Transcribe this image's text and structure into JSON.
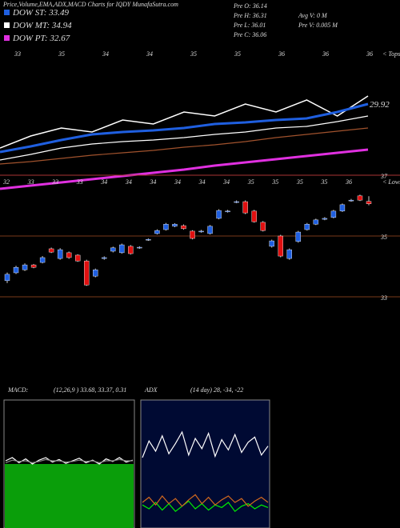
{
  "title": "Price,Volume,EMA,ADX,MACD Charts for IQDY MunafaSutra.com",
  "legend": [
    {
      "label": "DOW ST: 33.49",
      "color": "#1f5fe0"
    },
    {
      "label": "DOW MT: 34.94",
      "color": "#ffffff"
    },
    {
      "label": "DOW PT: 32.67",
      "color": "#e030e0"
    }
  ],
  "info": {
    "left": [
      "Pre  O: 36.14",
      "Pre  H: 36.31",
      "Pre  L: 36.01",
      "Pre  C: 36.06"
    ],
    "right": [
      "Avg  V: 0  M",
      "Pre  V: 0.005 M"
    ]
  },
  "chart_data": [
    {
      "type": "line",
      "ylim": [
        25,
        34
      ],
      "last_label": "29.92",
      "series": [
        {
          "color": "#ffffff",
          "values": [
            27.75,
            28.5,
            29.0,
            28.75,
            29.5,
            29.25,
            30.0,
            29.75,
            30.5,
            30.0,
            30.75,
            29.75,
            31.0
          ]
        },
        {
          "color": "#ffffff",
          "values": [
            27.0,
            27.35,
            27.75,
            28.0,
            28.15,
            28.25,
            28.4,
            28.6,
            28.75,
            29.0,
            29.1,
            29.4,
            29.75
          ]
        },
        {
          "color": "#1f5fe0",
          "values": [
            27.5,
            27.85,
            28.25,
            28.6,
            28.75,
            28.85,
            29.0,
            29.25,
            29.35,
            29.5,
            29.6,
            30.0,
            30.5
          ]
        },
        {
          "color": "#a0522d",
          "values": [
            26.75,
            26.9,
            27.1,
            27.3,
            27.45,
            27.6,
            27.8,
            27.95,
            28.15,
            28.4,
            28.6,
            28.8,
            29.0
          ]
        },
        {
          "color": "#e030e0",
          "values": [
            25.2,
            25.4,
            25.6,
            25.8,
            26.0,
            26.2,
            26.4,
            26.65,
            26.85,
            27.05,
            27.25,
            27.45,
            27.65
          ]
        }
      ]
    },
    {
      "type": "candlestick",
      "ylim": [
        32,
        38
      ],
      "yticks": [
        33,
        35,
        37
      ],
      "up_color": "#1f5fe0",
      "down_color": "#e01010",
      "open": [
        33.53,
        33.79,
        33.89,
        34.05,
        34.13,
        34.58,
        34.26,
        34.45,
        34.37,
        34.18,
        33.68,
        34.26,
        34.5,
        34.45,
        34.66,
        34.61,
        34.87,
        35.08,
        35.21,
        35.32,
        35.34,
        35.16,
        35.14,
        35.08,
        35.58,
        35.8,
        36.11,
        36.13,
        35.82,
        35.45,
        34.66,
        35.0,
        34.26,
        34.82,
        35.21,
        35.39,
        35.55,
        35.61,
        35.82,
        36.16,
        36.32,
        36.14
      ],
      "high": [
        33.8,
        34.02,
        34.1,
        34.08,
        34.34,
        34.62,
        34.6,
        34.49,
        34.4,
        34.22,
        33.93,
        34.33,
        34.65,
        34.75,
        34.7,
        34.66,
        34.92,
        35.22,
        35.43,
        35.42,
        35.38,
        35.19,
        35.2,
        35.36,
        35.88,
        35.86,
        36.17,
        36.17,
        35.86,
        35.49,
        34.88,
        35.04,
        34.59,
        35.17,
        35.43,
        35.57,
        35.62,
        35.86,
        36.07,
        36.22,
        36.36,
        36.31
      ],
      "low": [
        33.45,
        33.75,
        33.85,
        33.94,
        34.1,
        34.44,
        34.22,
        34.25,
        34.15,
        33.36,
        33.64,
        34.22,
        34.46,
        34.42,
        34.39,
        34.58,
        34.84,
        35.05,
        35.18,
        35.29,
        35.21,
        34.89,
        35.11,
        35.05,
        35.55,
        35.77,
        36.08,
        35.72,
        35.44,
        35.15,
        34.62,
        34.3,
        34.22,
        34.78,
        35.18,
        35.36,
        35.52,
        35.58,
        35.79,
        36.13,
        36.15,
        36.01
      ],
      "close": [
        33.74,
        33.97,
        34.05,
        33.97,
        34.29,
        34.47,
        34.55,
        34.29,
        34.18,
        33.39,
        33.89,
        34.29,
        34.61,
        34.71,
        34.42,
        34.63,
        34.89,
        35.18,
        35.39,
        35.39,
        35.24,
        34.92,
        35.16,
        35.32,
        35.84,
        35.82,
        36.13,
        35.76,
        35.47,
        35.18,
        34.84,
        34.34,
        34.55,
        35.13,
        35.39,
        35.53,
        35.58,
        35.82,
        36.03,
        36.18,
        36.18,
        36.06
      ],
      "top_labels": [
        "33",
        "35",
        "34",
        "34",
        "35",
        "35",
        "36",
        "36",
        "36"
      ],
      "top_marker": "< Tops",
      "low_labels": [
        "32",
        "33",
        "33",
        "33",
        "34",
        "34",
        "34",
        "34",
        "34",
        "34",
        "35",
        "35",
        "35",
        "35",
        "36"
      ],
      "low_marker": "< Lows"
    },
    {
      "type": "line",
      "title": "MACD:",
      "subtitle": "(12,26,9 ) 33.68, 33.37, 0.31",
      "ylim": [
        -1,
        1
      ],
      "fill_color": "#0a9e0a",
      "background": "#000000",
      "series": [
        {
          "color": "#ffffff",
          "values": [
            0.05,
            0.1,
            0.02,
            0.08,
            0.0,
            0.06,
            0.1,
            0.03,
            0.07,
            0.01,
            0.05,
            0.09,
            0.02,
            0.06,
            0.0,
            0.08,
            0.04,
            0.1,
            0.03,
            0.06
          ]
        },
        {
          "color": "#888888",
          "values": [
            0.02,
            0.06,
            0.04,
            0.05,
            0.02,
            0.04,
            0.07,
            0.05,
            0.05,
            0.03,
            0.04,
            0.06,
            0.04,
            0.05,
            0.02,
            0.05,
            0.05,
            0.07,
            0.05,
            0.05
          ]
        }
      ]
    },
    {
      "type": "line",
      "title": "ADX",
      "subtitle": "(14 day) 28, -34, -22",
      "ylim": [
        0,
        100
      ],
      "background": "#000a33",
      "series": [
        {
          "color": "#ffffff",
          "values": [
            55,
            68,
            60,
            72,
            58,
            66,
            75,
            57,
            70,
            62,
            74,
            56,
            69,
            61,
            73,
            59,
            67,
            71,
            57,
            64
          ]
        },
        {
          "color": "#00ee00",
          "values": [
            18,
            15,
            20,
            14,
            19,
            13,
            17,
            21,
            15,
            19,
            14,
            18,
            16,
            20,
            13,
            17,
            19,
            15,
            18,
            16
          ]
        },
        {
          "color": "#d2691e",
          "values": [
            20,
            24,
            18,
            25,
            19,
            23,
            17,
            22,
            26,
            19,
            24,
            18,
            22,
            25,
            20,
            23,
            17,
            21,
            24,
            20
          ]
        }
      ]
    }
  ]
}
